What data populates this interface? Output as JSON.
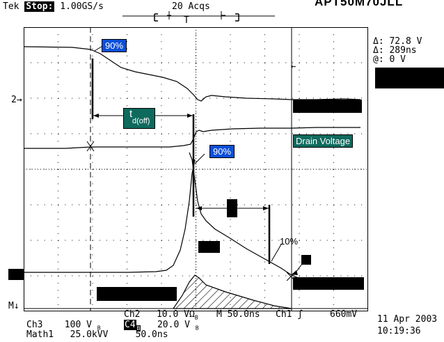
{
  "header": {
    "brand": "Tek",
    "run_state": "Stop:",
    "sample_rate": "1.00GS/s",
    "acquisitions": "20 Acqs",
    "top_right_text": "APT50M70JLL"
  },
  "cursor_readout": {
    "delta_v": "72.8 V",
    "delta_t": "289ns",
    "at": "0 V",
    "delta_symbol": "Δ:",
    "at_label": "@:"
  },
  "annotations": {
    "upper_90": "90%",
    "mid_90": "90%",
    "pct_10": "10%",
    "td_off_main": "t",
    "td_off_sub": "d(off)",
    "drain_voltage": "Drain Voltage"
  },
  "markers": {
    "ch2_ref": "2",
    "math_ref": "M"
  },
  "bottom": {
    "ch2_label": "Ch2",
    "ch2_scale": "10.0 V",
    "ch2_sub": "Ω",
    "ch2_bw": "B",
    "time_div": "M 50.0ns",
    "trig_src": "Ch1",
    "trig_level": "660mV",
    "ch3_label": "Ch3",
    "ch3_scale": "100 V",
    "ch3_bw": "B",
    "ch4_label": "C4",
    "ch4_sub": "B",
    "ch4_scale": "20.0 V",
    "ch4_bw": "B",
    "math_label": "Math1",
    "math_scale": "25.0kVV",
    "math_time": "50.0ns",
    "date": "11 Apr 2003",
    "time": "10:19:36"
  },
  "colors": {
    "cursor_box": "#0b4fd8",
    "annotation_box": "#0f6a5e",
    "trace": "#000000",
    "grid_dot": "#000000"
  }
}
